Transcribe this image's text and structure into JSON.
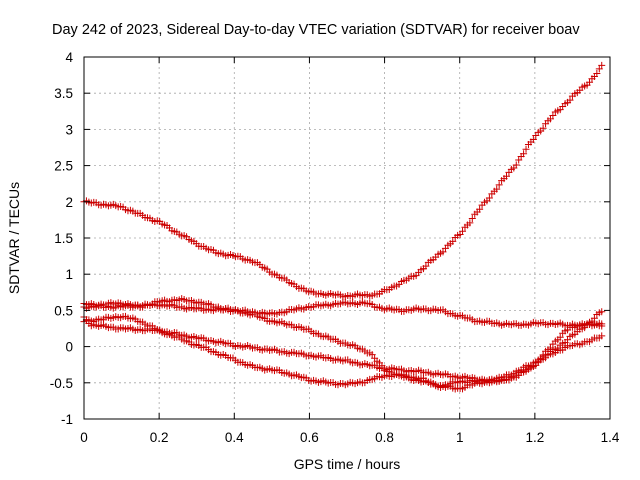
{
  "chart_data": {
    "type": "scatter",
    "title": "Day 242 of 2023, Sidereal Day-to-day VTEC variation (SDTVAR) for receiver boav",
    "xlabel": "GPS time / hours",
    "ylabel": "SDTVAR / TECUs",
    "xlim": [
      0,
      1.4
    ],
    "ylim": [
      -1,
      4
    ],
    "xticks": [
      0,
      0.2,
      0.4,
      0.6,
      0.8,
      1,
      1.2,
      1.4
    ],
    "xtick_labels": [
      "0",
      "0.2",
      "0.4",
      "0.6",
      "0.8",
      "1",
      "1.2",
      "1.4"
    ],
    "yticks": [
      -1,
      -0.5,
      0,
      0.5,
      1,
      1.5,
      2,
      2.5,
      3,
      3.5,
      4
    ],
    "ytick_labels": [
      "-1",
      "-0.5",
      "0",
      "0.5",
      "1",
      "1.5",
      "2",
      "2.5",
      "3",
      "3.5",
      "4"
    ],
    "grid": true,
    "marker": "+",
    "marker_color": "#cc0000",
    "series": [
      {
        "name": "series-a",
        "knots": [
          [
            0,
            2.0
          ],
          [
            0.1,
            1.93
          ],
          [
            0.15,
            1.82
          ],
          [
            0.2,
            1.72
          ],
          [
            0.25,
            1.57
          ],
          [
            0.3,
            1.42
          ],
          [
            0.35,
            1.3
          ],
          [
            0.4,
            1.25
          ],
          [
            0.45,
            1.18
          ],
          [
            0.5,
            1.02
          ],
          [
            0.55,
            0.88
          ],
          [
            0.6,
            0.75
          ],
          [
            0.65,
            0.72
          ],
          [
            0.7,
            0.7
          ],
          [
            0.78,
            0.72
          ],
          [
            0.82,
            0.82
          ],
          [
            0.88,
            0.98
          ],
          [
            0.95,
            1.3
          ],
          [
            1.0,
            1.55
          ],
          [
            1.05,
            1.88
          ],
          [
            1.1,
            2.2
          ],
          [
            1.15,
            2.52
          ],
          [
            1.2,
            2.9
          ],
          [
            1.25,
            3.2
          ],
          [
            1.3,
            3.45
          ],
          [
            1.35,
            3.68
          ],
          [
            1.38,
            3.88
          ]
        ]
      },
      {
        "name": "series-b",
        "knots": [
          [
            0,
            0.58
          ],
          [
            0.05,
            0.58
          ],
          [
            0.1,
            0.6
          ],
          [
            0.15,
            0.55
          ],
          [
            0.2,
            0.62
          ],
          [
            0.25,
            0.65
          ],
          [
            0.3,
            0.62
          ],
          [
            0.35,
            0.55
          ],
          [
            0.4,
            0.5
          ],
          [
            0.45,
            0.44
          ],
          [
            0.5,
            0.35
          ],
          [
            0.55,
            0.3
          ],
          [
            0.6,
            0.22
          ],
          [
            0.65,
            0.12
          ],
          [
            0.68,
            0.07
          ],
          [
            0.72,
            0.0
          ],
          [
            0.76,
            -0.08
          ],
          [
            0.8,
            -0.32
          ],
          [
            0.85,
            -0.42
          ],
          [
            0.9,
            -0.48
          ],
          [
            0.95,
            -0.55
          ],
          [
            1.0,
            -0.48
          ],
          [
            1.05,
            -0.48
          ],
          [
            1.1,
            -0.45
          ],
          [
            1.15,
            -0.35
          ],
          [
            1.2,
            -0.22
          ],
          [
            1.25,
            -0.05
          ],
          [
            1.3,
            0.15
          ],
          [
            1.35,
            0.35
          ],
          [
            1.38,
            0.5
          ]
        ]
      },
      {
        "name": "series-c",
        "knots": [
          [
            0,
            0.35
          ],
          [
            0.05,
            0.38
          ],
          [
            0.1,
            0.42
          ],
          [
            0.15,
            0.35
          ],
          [
            0.2,
            0.22
          ],
          [
            0.25,
            0.12
          ],
          [
            0.3,
            0.02
          ],
          [
            0.35,
            -0.08
          ],
          [
            0.4,
            -0.18
          ],
          [
            0.45,
            -0.28
          ],
          [
            0.5,
            -0.32
          ],
          [
            0.55,
            -0.38
          ],
          [
            0.6,
            -0.46
          ],
          [
            0.65,
            -0.5
          ],
          [
            0.7,
            -0.52
          ],
          [
            0.75,
            -0.48
          ],
          [
            0.8,
            -0.4
          ],
          [
            0.85,
            -0.4
          ],
          [
            0.9,
            -0.45
          ],
          [
            0.95,
            -0.55
          ],
          [
            1.0,
            -0.58
          ],
          [
            1.05,
            -0.5
          ],
          [
            1.1,
            -0.48
          ],
          [
            1.15,
            -0.42
          ],
          [
            1.2,
            -0.25
          ],
          [
            1.25,
            -0.08
          ],
          [
            1.3,
            0.02
          ],
          [
            1.35,
            0.08
          ],
          [
            1.38,
            0.15
          ]
        ]
      },
      {
        "name": "series-d",
        "knots": [
          [
            0,
            0.4
          ],
          [
            0.02,
            0.3
          ],
          [
            0.1,
            0.25
          ],
          [
            0.2,
            0.22
          ],
          [
            0.3,
            0.12
          ],
          [
            0.4,
            0.02
          ],
          [
            0.5,
            -0.05
          ],
          [
            0.6,
            -0.12
          ],
          [
            0.7,
            -0.2
          ],
          [
            0.8,
            -0.3
          ],
          [
            0.9,
            -0.35
          ],
          [
            1.0,
            -0.42
          ],
          [
            1.05,
            -0.45
          ],
          [
            1.1,
            -0.48
          ],
          [
            1.15,
            -0.4
          ],
          [
            1.2,
            -0.25
          ],
          [
            1.25,
            0.05
          ],
          [
            1.3,
            0.3
          ],
          [
            1.38,
            0.32
          ]
        ]
      },
      {
        "name": "series-e",
        "knots": [
          [
            0,
            0.55
          ],
          [
            0.1,
            0.55
          ],
          [
            0.2,
            0.58
          ],
          [
            0.3,
            0.52
          ],
          [
            0.4,
            0.5
          ],
          [
            0.5,
            0.45
          ],
          [
            0.6,
            0.55
          ],
          [
            0.65,
            0.58
          ],
          [
            0.7,
            0.6
          ],
          [
            0.75,
            0.6
          ],
          [
            0.8,
            0.52
          ],
          [
            0.85,
            0.5
          ],
          [
            0.9,
            0.52
          ],
          [
            0.95,
            0.5
          ],
          [
            1.0,
            0.42
          ],
          [
            1.05,
            0.35
          ],
          [
            1.1,
            0.32
          ],
          [
            1.15,
            0.3
          ],
          [
            1.2,
            0.32
          ],
          [
            1.25,
            0.32
          ],
          [
            1.3,
            0.28
          ],
          [
            1.35,
            0.3
          ],
          [
            1.38,
            0.3
          ]
        ]
      }
    ]
  }
}
